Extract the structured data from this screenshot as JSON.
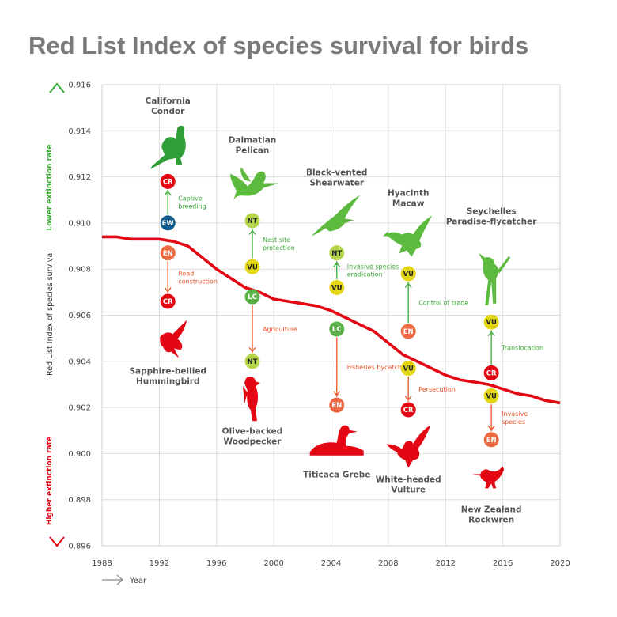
{
  "chart_data": {
    "type": "line",
    "title": "Red List Index of species survival for birds",
    "xlabel": "Year",
    "ylabel": "Red List Index of species survival",
    "xlim": [
      1988,
      2020
    ],
    "ylim": [
      0.896,
      0.916
    ],
    "x_ticks": [
      "1988",
      "1992",
      "1996",
      "2000",
      "2004",
      "2008",
      "2012",
      "2016",
      "2020"
    ],
    "y_ticks": [
      "0.916",
      "0.914",
      "0.912",
      "0.910",
      "0.908",
      "0.906",
      "0.904",
      "0.902",
      "0.900",
      "0.898",
      "0.896"
    ],
    "grid": true,
    "axis_arrows": {
      "top_label": "Lower extinction rate",
      "bottom_label": "Higher extinction rate"
    },
    "series": [
      {
        "color": "#e30613",
        "x": [
          1988,
          1989,
          1990,
          1991,
          1992,
          1993,
          1994,
          1995,
          1996,
          1997,
          1998,
          1999,
          2000,
          2001,
          2002,
          2003,
          2004,
          2005,
          2006,
          2007,
          2008,
          2009,
          2010,
          2011,
          2012,
          2013,
          2014,
          2015,
          2016,
          2017,
          2018,
          2019,
          2020
        ],
        "y": [
          0.9094,
          0.9094,
          0.9093,
          0.9093,
          0.9093,
          0.9092,
          0.909,
          0.9085,
          0.908,
          0.9076,
          0.9072,
          0.907,
          0.9067,
          0.9066,
          0.9065,
          0.9064,
          0.9062,
          0.9059,
          0.9056,
          0.9053,
          0.9048,
          0.9043,
          0.904,
          0.9037,
          0.9034,
          0.9032,
          0.9031,
          0.903,
          0.9028,
          0.9026,
          0.9025,
          0.9023,
          0.9022
        ]
      }
    ],
    "annotations": [
      {
        "species": [
          "California",
          "Condor"
        ],
        "icon": "condor-icon",
        "x": 1992.6,
        "icon_pos": "above",
        "name_pos": "above",
        "from": {
          "status": "EW",
          "y": 0.91
        },
        "to": {
          "status": "CR",
          "y": 0.9118
        },
        "event": [
          "Captive",
          "breeding"
        ],
        "direction": "up"
      },
      {
        "species": [
          "Sapphire-bellied",
          "Hummingbird"
        ],
        "icon": "hummingbird-icon",
        "x": 1992.6,
        "icon_pos": "below",
        "name_pos": "below",
        "from": {
          "status": "EN",
          "y": 0.9087
        },
        "to": {
          "status": "CR",
          "y": 0.9066
        },
        "event": [
          "Road",
          "construction"
        ],
        "direction": "down"
      },
      {
        "species": [
          "Dalmatian",
          "Pelican"
        ],
        "icon": "pelican-icon",
        "x": 1998.5,
        "icon_pos": "above",
        "name_pos": "above",
        "from": {
          "status": "VU",
          "y": 0.9081
        },
        "to": {
          "status": "NT",
          "y": 0.9101
        },
        "event": [
          "Nest site",
          "protection"
        ],
        "direction": "up"
      },
      {
        "species": [
          "Olive-backed",
          "Woodpecker"
        ],
        "icon": "woodpecker-icon",
        "x": 1998.5,
        "icon_pos": "below",
        "name_pos": "below",
        "from": {
          "status": "LC",
          "y": 0.9068
        },
        "to": {
          "status": "NT",
          "y": 0.904
        },
        "event": [
          "Agriculture"
        ],
        "direction": "down"
      },
      {
        "species": [
          "Black-vented",
          "Shearwater"
        ],
        "icon": "shearwater-icon",
        "x": 2004.4,
        "icon_pos": "above",
        "name_pos": "above",
        "from": {
          "status": "VU",
          "y": 0.9072
        },
        "to": {
          "status": "NT",
          "y": 0.9087
        },
        "event": [
          "Invasive species",
          "eradication"
        ],
        "direction": "up"
      },
      {
        "species": [
          "Titicaca Grebe"
        ],
        "icon": "grebe-icon",
        "x": 2004.4,
        "icon_pos": "below",
        "name_pos": "below",
        "from": {
          "status": "LC",
          "y": 0.9054
        },
        "to": {
          "status": "EN",
          "y": 0.9021
        },
        "event": [
          "Fisheries bycatch"
        ],
        "direction": "down"
      },
      {
        "species": [
          "Hyacinth",
          "Macaw"
        ],
        "icon": "macaw-icon",
        "x": 2009.4,
        "icon_pos": "above",
        "name_pos": "above",
        "from": {
          "status": "EN",
          "y": 0.9053
        },
        "to": {
          "status": "VU",
          "y": 0.9078
        },
        "event": [
          "Control of trade"
        ],
        "direction": "up"
      },
      {
        "species": [
          "White-headed",
          "Vulture"
        ],
        "icon": "vulture-icon",
        "x": 2009.4,
        "icon_pos": "below",
        "name_pos": "below",
        "from": {
          "status": "VU",
          "y": 0.9037
        },
        "to": {
          "status": "CR",
          "y": 0.9019
        },
        "event": [
          "Persecution"
        ],
        "direction": "down"
      },
      {
        "species": [
          "Seychelles",
          "Paradise-flycatcher"
        ],
        "icon": "flycatcher-icon",
        "x": 2015.2,
        "icon_pos": "above",
        "name_pos": "above",
        "from": {
          "status": "CR",
          "y": 0.9035
        },
        "to": {
          "status": "VU",
          "y": 0.9057
        },
        "event": [
          "Translocation"
        ],
        "direction": "up"
      },
      {
        "species": [
          "New Zealand",
          "Rockwren"
        ],
        "icon": "rockwren-icon",
        "x": 2015.2,
        "icon_pos": "below",
        "name_pos": "below",
        "from": {
          "status": "VU",
          "y": 0.9025
        },
        "to": {
          "status": "EN",
          "y": 0.9006
        },
        "event": [
          "Invasive",
          "species"
        ],
        "direction": "down"
      }
    ],
    "status_colors": {
      "CR": "#e30613",
      "EN": "#ec6a41",
      "VU": "#e3d613",
      "NT": "#b3d44b",
      "LC": "#59b247",
      "EW": "#0e5a8c"
    },
    "colors": {
      "up": "#3aa935",
      "down": "#e8562a",
      "line": "#e30613",
      "bird_dark": "#2f9e37",
      "bird_light": "#5cba3f"
    }
  }
}
